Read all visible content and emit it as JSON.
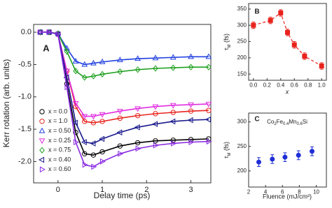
{
  "chart_data": [
    {
      "type": "line",
      "panel_label": "A",
      "x_label": "Delay time (ps)",
      "y_label": "Kerr rotation (arb. units)",
      "x": [
        -0.4,
        -0.2,
        0,
        0.2,
        0.4,
        0.6,
        0.8,
        1.0,
        1.4,
        1.8,
        2.2,
        2.6,
        3.0,
        3.4
      ],
      "series": [
        {
          "name": "x = 0.0",
          "color": "#000000",
          "marker": "circle",
          "values": [
            0,
            0,
            -0.03,
            -0.8,
            -1.55,
            -1.88,
            -1.9,
            -1.85,
            -1.76,
            -1.71,
            -1.68,
            -1.67,
            -1.66,
            -1.65
          ]
        },
        {
          "name": "x = 1.0",
          "color": "#e8231d",
          "marker": "circle",
          "values": [
            0,
            0,
            -0.03,
            -0.6,
            -1.15,
            -1.38,
            -1.4,
            -1.38,
            -1.33,
            -1.29,
            -1.26,
            -1.24,
            -1.22,
            -1.21
          ]
        },
        {
          "name": "x = 0.50",
          "color": "#1f3fe0",
          "marker": "triangle-up",
          "values": [
            0,
            0,
            -0.02,
            -0.25,
            -0.45,
            -0.5,
            -0.48,
            -0.46,
            -0.43,
            -0.41,
            -0.4,
            -0.39,
            -0.38,
            -0.38
          ]
        },
        {
          "name": "x = 0.25",
          "color": "#e02ee0",
          "marker": "triangle-down",
          "values": [
            0,
            0,
            -0.03,
            -0.6,
            -1.1,
            -1.3,
            -1.3,
            -1.27,
            -1.22,
            -1.18,
            -1.15,
            -1.13,
            -1.12,
            -1.11
          ]
        },
        {
          "name": "x = 0.75",
          "color": "#1fa01f",
          "marker": "diamond",
          "values": [
            0,
            0,
            -0.02,
            -0.3,
            -0.6,
            -0.7,
            -0.68,
            -0.65,
            -0.61,
            -0.58,
            -0.56,
            -0.55,
            -0.54,
            -0.54
          ]
        },
        {
          "name": "x = 0.40",
          "color": "#1a1a8c",
          "marker": "triangle-left",
          "values": [
            0,
            0,
            -0.03,
            -0.7,
            -1.4,
            -1.7,
            -1.72,
            -1.65,
            -1.55,
            -1.47,
            -1.42,
            -1.38,
            -1.36,
            -1.35
          ]
        },
        {
          "name": "x = 0.60",
          "color": "#8a2be2",
          "marker": "triangle-right",
          "values": [
            0,
            0,
            -0.03,
            -0.85,
            -1.7,
            -2.05,
            -2.08,
            -2.0,
            -1.88,
            -1.8,
            -1.75,
            -1.72,
            -1.7,
            -1.69
          ]
        }
      ],
      "connect": true,
      "line_style": "solid",
      "marker_fill": "hollow",
      "legend": "lower left",
      "xlim": [
        -0.55,
        3.45
      ],
      "xticks": [
        0,
        1,
        2,
        3
      ],
      "ylim": [
        -2.33,
        0.12
      ],
      "yticks": [
        {
          "value": 0,
          "label": "0.0"
        },
        -0.5,
        {
          "value": -1,
          "label": "-1.0"
        },
        -1.5,
        {
          "value": -2,
          "label": "-2.0"
        }
      ]
    },
    {
      "type": "line",
      "panel_label": "B",
      "x_label": "x",
      "y_label": {
        "symbol": "τ",
        "subscript": "M",
        "unit": " (fs)"
      },
      "x": [
        0,
        0.25,
        0.4,
        0.5,
        0.6,
        0.75,
        1.0
      ],
      "series": [
        {
          "color": "#e8231d",
          "marker": "square",
          "values": [
            300,
            315,
            338,
            278,
            240,
            205,
            175
          ],
          "errors": [
            10,
            10,
            10,
            10,
            10,
            10,
            10
          ]
        }
      ],
      "connect": true,
      "line_style": "dashed",
      "marker_fill": "filled",
      "xlim": [
        -0.07,
        1.07
      ],
      "xticks": [
        {
          "value": 0,
          "label": "0.0"
        },
        0.2,
        0.4,
        0.6,
        0.8,
        {
          "value": 1,
          "label": "1.0"
        }
      ],
      "ylim": [
        131,
        367
      ],
      "yticks": [
        150,
        200,
        250,
        300,
        350
      ]
    },
    {
      "type": "scatter",
      "panel_label": "C",
      "x_label": "Fluence (mJ/cm²)",
      "y_label": {
        "symbol": "τ",
        "subscript": "M",
        "unit": " (fs)"
      },
      "annotation": {
        "parts": [
          "Co",
          "2",
          "Fe",
          "0.4",
          "Mn",
          "0.6",
          "Si"
        ]
      },
      "x": [
        3.2,
        4.8,
        6.3,
        7.9,
        9.5
      ],
      "series": [
        {
          "color": "#1f2ed6",
          "marker": "circle",
          "values": [
            218,
            224,
            228,
            232,
            240
          ],
          "errors": [
            9,
            9,
            9,
            9,
            9
          ]
        }
      ],
      "connect": false,
      "marker_fill": "filled",
      "xlim": [
        2,
        11.2
      ],
      "xticks": [
        2,
        4,
        6,
        8,
        10
      ],
      "ylim": [
        167,
        318
      ],
      "yticks": [
        200,
        250,
        300
      ]
    }
  ]
}
